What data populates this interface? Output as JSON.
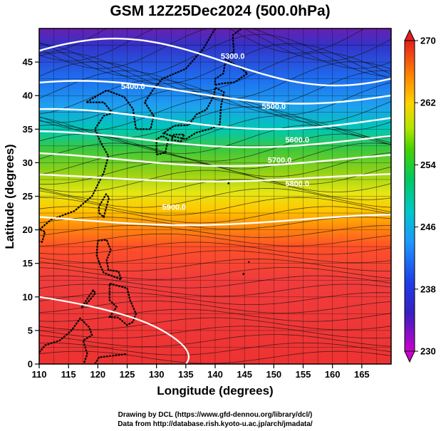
{
  "title": "GSM 12Z25Dec2024 (500.0hPa)",
  "xlabel": "Longitude (degrees)",
  "ylabel": "Latitude  (degrees)",
  "credits": [
    "Drawing by DCL (https://www.gfd-dennou.org/library/dcl/)",
    "Data from http://database.rish.kyoto-u.ac.jp/arch/jmadata/"
  ],
  "map_data": {
    "lon_range": [
      110,
      170
    ],
    "lat_range": [
      0,
      50
    ],
    "x_ticks": [
      "110",
      "115",
      "120",
      "125",
      "130",
      "135",
      "140",
      "145",
      "150",
      "155",
      "160",
      "165"
    ],
    "y_ticks": [
      "0",
      "5",
      "10",
      "15",
      "20",
      "25",
      "30",
      "35",
      "40",
      "45"
    ],
    "field": "temperature (shaded)",
    "colorbar": {
      "min": 230,
      "max": 270,
      "labels": [
        "230",
        "238",
        "246",
        "254",
        "262",
        "270"
      ],
      "colors": [
        "#cc00cc",
        "#1f1fc8",
        "#1e90ff",
        "#00c8c8",
        "#00c864",
        "#46d200",
        "#b4e600",
        "#ffd200",
        "#ff8c00",
        "#ff3232",
        "#e61e1e"
      ]
    },
    "contours": [
      {
        "label": "5300.0"
      },
      {
        "label": "5400.0"
      },
      {
        "label": "5500.0"
      },
      {
        "label": "5600.0"
      },
      {
        "label": "5700.0"
      },
      {
        "label": "5800.0"
      },
      {
        "label": "5900.0"
      }
    ]
  }
}
